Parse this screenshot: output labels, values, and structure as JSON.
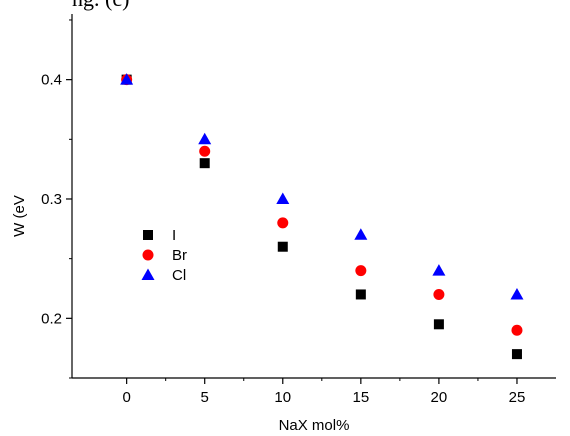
{
  "caption_fragment": "ng. (c)",
  "colors": {
    "I": "#000000",
    "Br": "#ff0000",
    "Cl": "#0000ff",
    "axis": "#000000",
    "background": "#ffffff"
  },
  "chart_data": {
    "type": "scatter",
    "title": "",
    "xlabel": "NaX mol%",
    "ylabel": "W (eV",
    "xlim": [
      -3.5,
      27.5
    ],
    "ylim": [
      0.15,
      0.455
    ],
    "x_ticks": [
      0,
      5,
      10,
      15,
      20,
      25
    ],
    "x_tick_labels": [
      "0",
      "5",
      "10",
      "15",
      "20",
      "25"
    ],
    "y_ticks": [
      0.2,
      0.3,
      0.4
    ],
    "y_tick_labels": [
      "0.2",
      "0.3",
      "0.4"
    ],
    "grid": false,
    "legend_position": "center-left",
    "series": [
      {
        "name": "I",
        "marker": "square",
        "color": "#000000",
        "x": [
          0,
          5,
          10,
          15,
          20,
          25
        ],
        "y": [
          0.4,
          0.33,
          0.26,
          0.22,
          0.195,
          0.17
        ]
      },
      {
        "name": "Br",
        "marker": "circle",
        "color": "#ff0000",
        "x": [
          0,
          5,
          10,
          15,
          20,
          25
        ],
        "y": [
          0.4,
          0.34,
          0.28,
          0.24,
          0.22,
          0.19
        ]
      },
      {
        "name": "Cl",
        "marker": "triangle",
        "color": "#0000ff",
        "x": [
          0,
          5,
          10,
          15,
          20,
          25
        ],
        "y": [
          0.4,
          0.35,
          0.3,
          0.27,
          0.24,
          0.22
        ]
      }
    ]
  }
}
